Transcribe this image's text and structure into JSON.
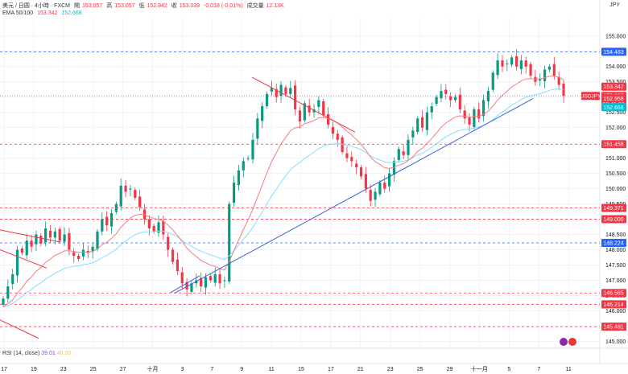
{
  "header": {
    "symbol": "美元 / 日圆 · 4小時 · FXCM",
    "open_label": "開",
    "open": "153.057",
    "high_label": "高",
    "high": "153.057",
    "low_label": "低",
    "low": "152.942",
    "close_label": "收",
    "close": "153.039",
    "change": "-0.018 (-0.01%)",
    "volume_label": "成交量",
    "volume": "12.13K",
    "ema_label": "EMA 50/100",
    "ema50": "153.342",
    "ema100": "152.668"
  },
  "rsi": {
    "label": "RSI (14, close)",
    "value1": "39.01",
    "value2": "49.09"
  },
  "axis": {
    "unit": "JPY"
  },
  "colors": {
    "up": "#089981",
    "down": "#f23645",
    "ema50": "#f77c80",
    "ema100": "#82e0ff",
    "trend_blue": "#3961d8",
    "trend_red": "#f23645"
  },
  "chart_data": {
    "type": "candlestick",
    "ylim": [
      144.8,
      155.6
    ],
    "y_ticks": [
      145.0,
      145.5,
      146.0,
      146.5,
      147.0,
      147.5,
      148.0,
      148.5,
      149.0,
      149.5,
      150.0,
      150.5,
      151.0,
      151.5,
      152.0,
      152.5,
      153.0,
      153.5,
      154.0,
      154.5,
      155.0
    ],
    "x_ticks": [
      "17",
      "19",
      "23",
      "25",
      "27",
      "十月",
      "3",
      "7",
      "9",
      "11",
      "15",
      "17",
      "21",
      "23",
      "25",
      "29",
      "十一月",
      "5",
      "7",
      "11"
    ],
    "levels": [
      {
        "value": 154.483,
        "label": "154.483",
        "kind": "blue"
      },
      {
        "value": 151.458,
        "label": "151.458",
        "kind": "red"
      },
      {
        "value": 149.371,
        "label": "149.371",
        "kind": "red"
      },
      {
        "value": 149.0,
        "label": "149.000",
        "kind": "red"
      },
      {
        "value": 148.224,
        "label": "148.224",
        "kind": "blue"
      },
      {
        "value": 146.585,
        "label": "146.585",
        "kind": "red"
      },
      {
        "value": 146.214,
        "label": "146.214",
        "kind": "red"
      },
      {
        "value": 145.481,
        "label": "145.481",
        "kind": "red"
      }
    ],
    "price_tags": [
      {
        "value": 153.342,
        "label": "153.342",
        "color": "#f23645"
      },
      {
        "value": 153.039,
        "label": "153.039",
        "sub": "03:41:02",
        "symbol": "USDJPY",
        "color": "#f23645"
      },
      {
        "value": 152.958,
        "label": "152.958",
        "color": "#f23645"
      },
      {
        "value": 152.668,
        "label": "152.668",
        "color": "#00bcd4"
      }
    ],
    "trendlines": [
      {
        "x1": 217,
        "v1": 146.58,
        "x2": 662,
        "v2": 152.95,
        "color": "#3961d8"
      },
      {
        "x1": 313,
        "v1": 153.65,
        "x2": 441,
        "v2": 151.85,
        "color": "#f23645"
      },
      {
        "x1": 0,
        "v1": 148.65,
        "x2": 75,
        "v2": 148.25,
        "color": "#f23645"
      },
      {
        "x1": 0,
        "v1": 148.0,
        "x2": 58,
        "v2": 147.4,
        "color": "#f23645"
      },
      {
        "x1": 0,
        "v1": 145.7,
        "x2": 48,
        "v2": 145.1,
        "color": "#f23645"
      },
      {
        "x1": 212,
        "v1": 146.6,
        "x2": 248,
        "v2": 147.15,
        "color": "#3961d8"
      }
    ],
    "closes": [
      146.4,
      146.8,
      147.2,
      148.0,
      147.9,
      148.3,
      148.1,
      148.5,
      148.2,
      148.7,
      148.4,
      148.6,
      148.3,
      148.5,
      148.0,
      147.8,
      147.7,
      148.0,
      147.9,
      148.1,
      148.6,
      149.0,
      148.8,
      149.2,
      149.5,
      150.1,
      149.9,
      150.0,
      149.7,
      149.4,
      149.0,
      148.7,
      148.6,
      148.9,
      148.5,
      148.0,
      147.6,
      147.3,
      146.9,
      146.7,
      146.9,
      147.0,
      146.8,
      147.1,
      147.0,
      147.2,
      146.9,
      147.0,
      149.5,
      150.2,
      150.6,
      150.9,
      151.0,
      151.6,
      152.3,
      152.7,
      153.1,
      153.3,
      153.0,
      153.4,
      153.1,
      153.3,
      152.6,
      152.2,
      152.8,
      152.5,
      152.6,
      152.9,
      152.4,
      152.1,
      151.8,
      151.6,
      151.2,
      151.0,
      150.9,
      150.7,
      150.4,
      150.0,
      149.6,
      149.9,
      150.2,
      150.0,
      150.5,
      150.9,
      151.3,
      151.1,
      151.6,
      151.9,
      152.3,
      152.0,
      152.5,
      152.7,
      153.0,
      153.2,
      153.1,
      152.9,
      153.0,
      152.6,
      152.3,
      152.1,
      152.6,
      152.3,
      152.9,
      153.2,
      153.8,
      154.2,
      154.0,
      154.1,
      154.3,
      154.0,
      154.2,
      154.0,
      153.7,
      153.5,
      153.6,
      153.9,
      154.0,
      153.7,
      153.4,
      153.04
    ]
  }
}
